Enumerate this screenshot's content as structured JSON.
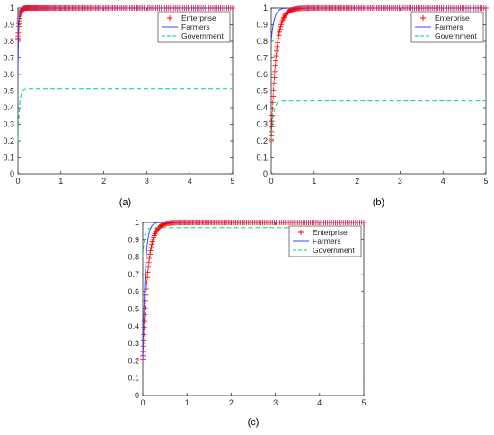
{
  "chart_data": [
    {
      "type": "line",
      "panel_label": "(a)",
      "xlim": [
        0,
        5
      ],
      "ylim": [
        0,
        1
      ],
      "x_ticks": [
        "0",
        "1",
        "2",
        "3",
        "4",
        "5"
      ],
      "y_ticks": [
        "0",
        "0.1",
        "0.2",
        "0.3",
        "0.4",
        "0.5",
        "0.6",
        "0.7",
        "0.8",
        "0.9",
        "1"
      ],
      "legend": {
        "placement": "top-right",
        "entries": [
          "Enterprise",
          "Farmers",
          "Government"
        ]
      },
      "grid": false,
      "series": [
        {
          "name": "Enterprise",
          "marker": "+",
          "color": "#ff0000",
          "start": 0.81,
          "end": 1.0,
          "rate": 30
        },
        {
          "name": "Farmers",
          "line": "solid",
          "color": "#4040ff",
          "start": 0.6,
          "end": 1.0,
          "rate": 60
        },
        {
          "name": "Government",
          "line": "dashed",
          "color": "#00d37a",
          "start": 0.2,
          "end": 0.515,
          "rate": 30
        }
      ]
    },
    {
      "type": "line",
      "panel_label": "(b)",
      "xlim": [
        0,
        5
      ],
      "ylim": [
        0,
        1
      ],
      "x_ticks": [
        "0",
        "1",
        "2",
        "3",
        "4",
        "5"
      ],
      "y_ticks": [
        "0",
        "0.1",
        "0.2",
        "0.3",
        "0.4",
        "0.5",
        "0.6",
        "0.7",
        "0.8",
        "0.9",
        "1"
      ],
      "legend": {
        "placement": "top-right",
        "entries": [
          "Enterprise",
          "Farmers",
          "Government"
        ]
      },
      "grid": false,
      "series": [
        {
          "name": "Enterprise",
          "marker": "+",
          "color": "#ff0000",
          "start": 0.2,
          "end": 1.0,
          "rate": 9
        },
        {
          "name": "Farmers",
          "line": "solid",
          "color": "#4040ff",
          "start": 0.8,
          "end": 1.0,
          "rate": 15
        },
        {
          "name": "Government",
          "line": "dashed",
          "color": "#00d37a",
          "start": 0.2,
          "end": 0.44,
          "rate": 20
        }
      ]
    },
    {
      "type": "line",
      "panel_label": "(c)",
      "xlim": [
        0,
        5
      ],
      "ylim": [
        0,
        1
      ],
      "x_ticks": [
        "0",
        "1",
        "2",
        "3",
        "4",
        "5"
      ],
      "y_ticks": [
        "0",
        "0.1",
        "0.2",
        "0.3",
        "0.4",
        "0.5",
        "0.6",
        "0.7",
        "0.8",
        "0.9",
        "1"
      ],
      "legend": {
        "placement": "top-right",
        "entries": [
          "Enterprise",
          "Farmers",
          "Government"
        ]
      },
      "grid": false,
      "series": [
        {
          "name": "Enterprise",
          "marker": "+",
          "color": "#ff0000",
          "start": 0.2,
          "end": 1.0,
          "rate": 9
        },
        {
          "name": "Farmers",
          "line": "solid",
          "color": "#4040ff",
          "start": 0.2,
          "end": 1.0,
          "rate": 18
        },
        {
          "name": "Government",
          "line": "dashed",
          "color": "#00d37a",
          "start": 0.8,
          "end": 0.97,
          "rate": 25
        }
      ]
    }
  ]
}
